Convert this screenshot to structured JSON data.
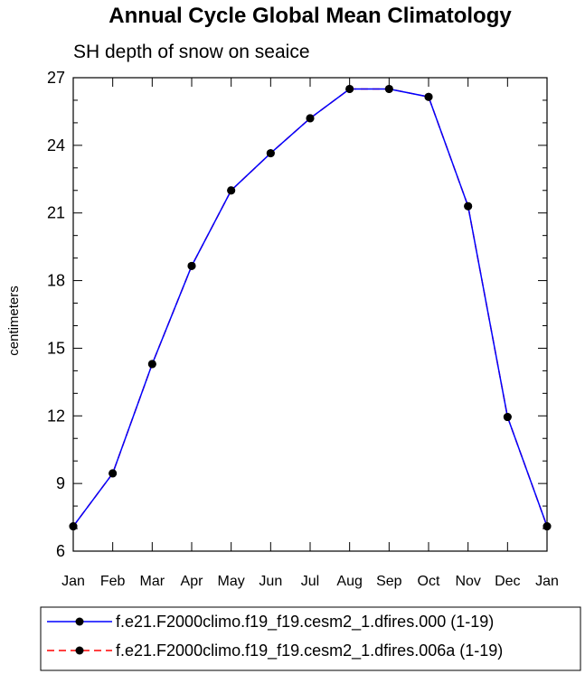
{
  "chart_data": {
    "type": "line",
    "title": "Annual Cycle Global Mean Climatology",
    "subtitle": "SH depth of snow on seaice",
    "xlabel": "",
    "ylabel": "centimeters",
    "categories": [
      "Jan",
      "Feb",
      "Mar",
      "Apr",
      "May",
      "Jun",
      "Jul",
      "Aug",
      "Sep",
      "Oct",
      "Nov",
      "Dec",
      "Jan"
    ],
    "ylim": [
      6,
      27
    ],
    "yticks": [
      6,
      9,
      12,
      15,
      18,
      21,
      24,
      27
    ],
    "grid": false,
    "legend_position": "bottom",
    "series": [
      {
        "name": "f.e21.F2000climo.f19_f19.cesm2_1.dfires.000 (1-19)",
        "color": "#0000ff",
        "line_style": "solid",
        "values": [
          7.1,
          9.45,
          14.3,
          18.65,
          22.0,
          23.65,
          25.2,
          26.5,
          26.5,
          26.15,
          21.3,
          11.95,
          7.1
        ]
      },
      {
        "name": "f.e21.F2000climo.f19_f19.cesm2_1.dfires.006a (1-19)",
        "color": "#ff0000",
        "line_style": "dashed",
        "values": [
          7.1,
          9.45,
          14.3,
          18.65,
          22.0,
          23.65,
          25.2,
          26.5,
          26.5,
          26.15,
          21.3,
          11.95,
          7.1
        ]
      }
    ]
  }
}
